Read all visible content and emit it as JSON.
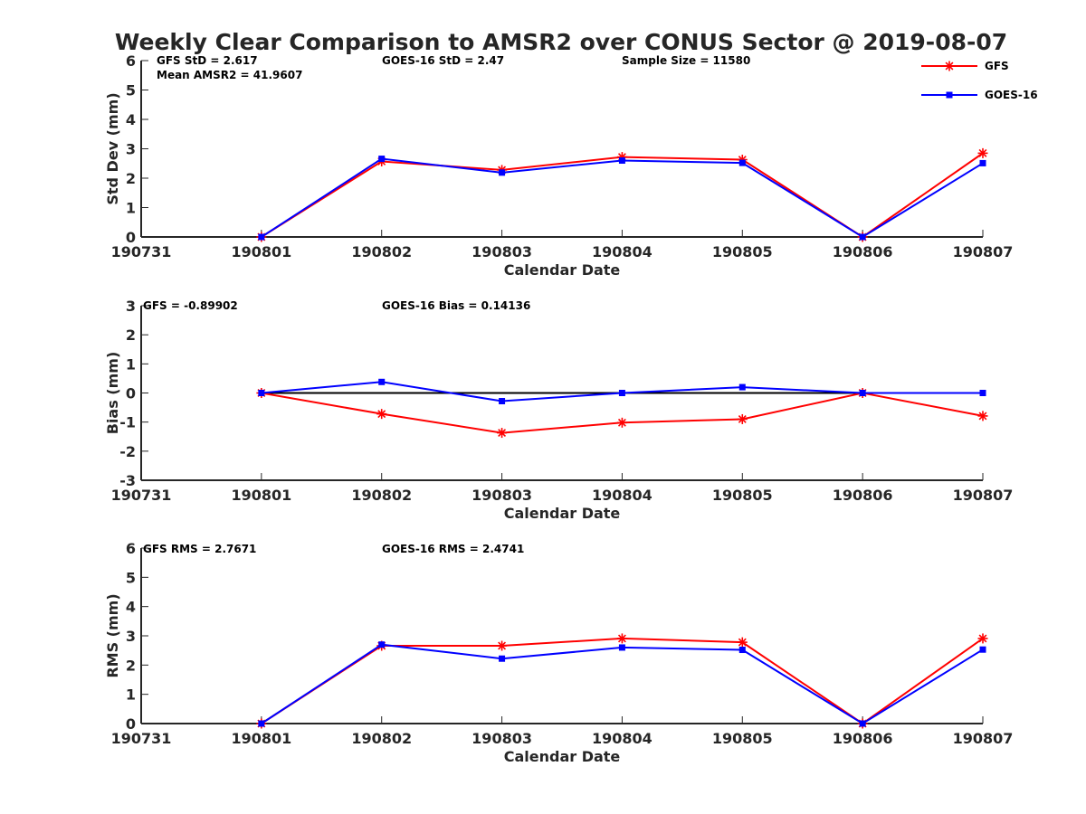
{
  "chart_data": {
    "title": "Weekly Clear Comparison to AMSR2 over CONUS Sector @ 2019-08-07",
    "x_ticks": [
      "190731",
      "190801",
      "190802",
      "190803",
      "190804",
      "190805",
      "190806",
      "190807"
    ],
    "legend": {
      "placement": "top-right",
      "entries": [
        {
          "name": "GFS",
          "color": "#ff0000",
          "marker": "asterisk"
        },
        {
          "name": "GOES-16",
          "color": "#0000ff",
          "marker": "square"
        }
      ]
    },
    "panels": [
      {
        "type": "line",
        "xlabel": "Calendar Date",
        "ylabel": "Std Dev (mm)",
        "ylim": [
          0,
          6
        ],
        "y_ticks": [
          "0",
          "1",
          "2",
          "3",
          "4",
          "5",
          "6"
        ],
        "zero_line": false,
        "annotations": [
          "GFS StD = 2.617",
          "Mean AMSR2 = 41.9607",
          "GOES-16 StD = 2.47",
          "Sample Size = 11580"
        ],
        "series": [
          {
            "name": "GFS",
            "color": "#ff0000",
            "marker": "asterisk",
            "x": [
              "190801",
              "190802",
              "190803",
              "190804",
              "190805",
              "190806",
              "190807"
            ],
            "values": [
              0,
              2.57,
              2.28,
              2.72,
              2.63,
              0,
              2.85
            ]
          },
          {
            "name": "GOES-16",
            "color": "#0000ff",
            "marker": "square",
            "x": [
              "190801",
              "190802",
              "190803",
              "190804",
              "190805",
              "190806",
              "190807"
            ],
            "values": [
              0,
              2.66,
              2.19,
              2.6,
              2.52,
              0,
              2.51
            ]
          }
        ]
      },
      {
        "type": "line",
        "xlabel": "Calendar Date",
        "ylabel": "Bias (mm)",
        "ylim": [
          -3,
          3
        ],
        "y_ticks": [
          "-3",
          "-2",
          "-1",
          "0",
          "1",
          "2",
          "3"
        ],
        "zero_line": true,
        "annotations": [
          "GFS = -0.89902",
          "GOES-16 Bias  = 0.14136"
        ],
        "series": [
          {
            "name": "GFS",
            "color": "#ff0000",
            "marker": "asterisk",
            "x": [
              "190801",
              "190802",
              "190803",
              "190804",
              "190805",
              "190806",
              "190807"
            ],
            "values": [
              0,
              -0.72,
              -1.37,
              -1.02,
              -0.9,
              0,
              -0.79
            ]
          },
          {
            "name": "GOES-16",
            "color": "#0000ff",
            "marker": "square",
            "x": [
              "190801",
              "190802",
              "190803",
              "190804",
              "190805",
              "190806",
              "190807"
            ],
            "values": [
              0,
              0.38,
              -0.28,
              0,
              0.2,
              0,
              0
            ]
          }
        ]
      },
      {
        "type": "line",
        "xlabel": "Calendar Date",
        "ylabel": "RMS (mm)",
        "ylim": [
          0,
          6
        ],
        "y_ticks": [
          "0",
          "1",
          "2",
          "3",
          "4",
          "5",
          "6"
        ],
        "zero_line": false,
        "annotations": [
          "GFS RMS = 2.7671",
          "GOES-16 RMS = 2.4741"
        ],
        "series": [
          {
            "name": "GFS",
            "color": "#ff0000",
            "marker": "asterisk",
            "x": [
              "190801",
              "190802",
              "190803",
              "190804",
              "190805",
              "190806",
              "190807"
            ],
            "values": [
              0,
              2.66,
              2.66,
              2.91,
              2.78,
              0,
              2.91
            ]
          },
          {
            "name": "GOES-16",
            "color": "#0000ff",
            "marker": "square",
            "x": [
              "190801",
              "190802",
              "190803",
              "190804",
              "190805",
              "190806",
              "190807"
            ],
            "values": [
              0,
              2.7,
              2.22,
              2.6,
              2.52,
              0,
              2.53
            ]
          }
        ]
      }
    ]
  }
}
